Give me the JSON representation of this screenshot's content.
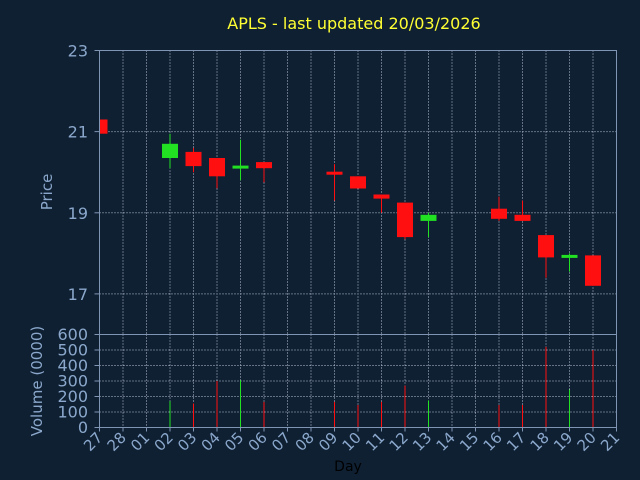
{
  "chart_data": {
    "type": "candlestick",
    "title": "APLS - last updated 20/03/2026",
    "xlabel": "Day",
    "grid": true,
    "x": [
      "27",
      "28",
      "01",
      "02",
      "03",
      "04",
      "05",
      "06",
      "07",
      "08",
      "09",
      "10",
      "11",
      "12",
      "13",
      "14",
      "15",
      "16",
      "17",
      "18",
      "19",
      "20",
      "21"
    ],
    "price_panel": {
      "ylabel": "Price",
      "ylim": [
        16,
        23
      ],
      "yticks": [
        "17",
        "19",
        "21",
        "23"
      ],
      "candles": [
        {
          "day": "27",
          "open": 21.3,
          "high": 21.3,
          "low": 20.95,
          "close": 20.95
        },
        {
          "day": "02",
          "open": 20.35,
          "high": 20.95,
          "low": 20.1,
          "close": 20.7
        },
        {
          "day": "03",
          "open": 20.5,
          "high": 20.6,
          "low": 20.0,
          "close": 20.15
        },
        {
          "day": "04",
          "open": 20.35,
          "high": 20.35,
          "low": 19.6,
          "close": 19.9
        },
        {
          "day": "05",
          "open": 20.1,
          "high": 20.8,
          "low": 19.8,
          "close": 20.15
        },
        {
          "day": "06",
          "open": 20.25,
          "high": 20.25,
          "low": 19.75,
          "close": 20.1
        },
        {
          "day": "09",
          "open": 20.0,
          "high": 20.2,
          "low": 19.3,
          "close": 19.95
        },
        {
          "day": "10",
          "open": 19.9,
          "high": 19.9,
          "low": 19.6,
          "close": 19.6
        },
        {
          "day": "11",
          "open": 19.45,
          "high": 19.45,
          "low": 19.0,
          "close": 19.35
        },
        {
          "day": "12",
          "open": 19.25,
          "high": 19.25,
          "low": 18.35,
          "close": 18.4
        },
        {
          "day": "13",
          "open": 18.8,
          "high": 19.0,
          "low": 18.4,
          "close": 18.95
        },
        {
          "day": "16",
          "open": 19.1,
          "high": 19.4,
          "low": 18.8,
          "close": 18.85
        },
        {
          "day": "17",
          "open": 18.95,
          "high": 19.3,
          "low": 18.8,
          "close": 18.8
        },
        {
          "day": "18",
          "open": 18.45,
          "high": 18.45,
          "low": 17.4,
          "close": 17.9
        },
        {
          "day": "19",
          "open": 17.9,
          "high": 18.0,
          "low": 17.55,
          "close": 17.95
        },
        {
          "day": "20",
          "open": 17.95,
          "high": 17.95,
          "low": 17.2,
          "close": 17.2
        }
      ]
    },
    "volume_panel": {
      "ylabel": "Volume (0000)",
      "ylim": [
        0,
        600
      ],
      "yticks": [
        "0",
        "100",
        "200",
        "300",
        "400",
        "500",
        "600"
      ],
      "bars": [
        {
          "day": "27",
          "value": 0
        },
        {
          "day": "02",
          "value": 170
        },
        {
          "day": "03",
          "value": 155
        },
        {
          "day": "04",
          "value": 300
        },
        {
          "day": "05",
          "value": 305
        },
        {
          "day": "06",
          "value": 165
        },
        {
          "day": "09",
          "value": 165
        },
        {
          "day": "10",
          "value": 145
        },
        {
          "day": "11",
          "value": 165
        },
        {
          "day": "12",
          "value": 270
        },
        {
          "day": "13",
          "value": 175
        },
        {
          "day": "16",
          "value": 145
        },
        {
          "day": "17",
          "value": 145
        },
        {
          "day": "18",
          "value": 520
        },
        {
          "day": "19",
          "value": 245
        },
        {
          "day": "20",
          "value": 500
        }
      ]
    },
    "colors": {
      "background": "#0f2033",
      "up": "#22e022",
      "down": "#ff0f0f",
      "axis": "#7f95b3",
      "grid": "#b8c4d4",
      "title": "#ffff33",
      "text": "#8ba8cc",
      "xlabel": "#000000"
    }
  }
}
